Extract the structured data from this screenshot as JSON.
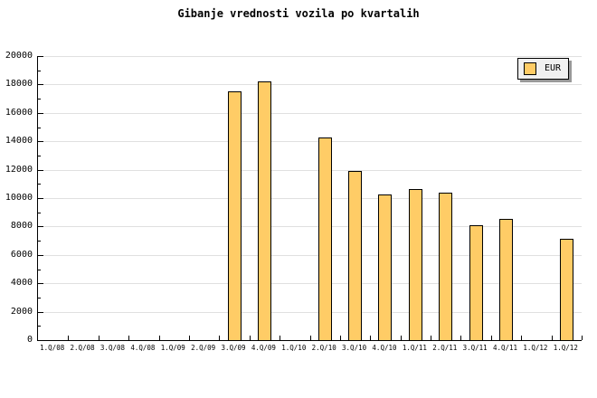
{
  "title": "Gibanje vrednosti vozila po kvartalih",
  "legend": {
    "label": "EUR"
  },
  "colors": {
    "bar_fill": "#FFCC66",
    "bar_border": "#000000",
    "grid": "#E0E0E0",
    "axis": "#000000",
    "legend_bg": "#F0F0F0",
    "legend_shadow": "#999999",
    "text": "#000000"
  },
  "chart_data": {
    "type": "bar",
    "title": "Gibanje vrednosti vozila po kvartalih",
    "categories": [
      "1.Q/08",
      "2.Q/08",
      "3.Q/08",
      "4.Q/08",
      "1.Q/09",
      "2.Q/09",
      "3.Q/09",
      "4.Q/09",
      "1.Q/10",
      "2.Q/10",
      "3.Q/10",
      "4.Q/10",
      "1.Q/11",
      "2.Q/11",
      "3.Q/11",
      "4.Q/11",
      "1.Q/12",
      "1.Q/12"
    ],
    "series": [
      {
        "name": "EUR",
        "values": [
          null,
          null,
          null,
          null,
          null,
          null,
          17450,
          18150,
          null,
          14200,
          11850,
          10200,
          10550,
          10300,
          8000,
          8500,
          null,
          7100
        ]
      }
    ],
    "ylim": [
      0,
      20000
    ],
    "ytick_major": 2000,
    "ytick_minor": 1000,
    "y_tick_labels": [
      "0",
      "2000",
      "4000",
      "6000",
      "8000",
      "10000",
      "12000",
      "14000",
      "16000",
      "18000",
      "20000"
    ],
    "grid": "horizontal",
    "legend_position": "top-right",
    "legend_entries": [
      "EUR"
    ]
  }
}
